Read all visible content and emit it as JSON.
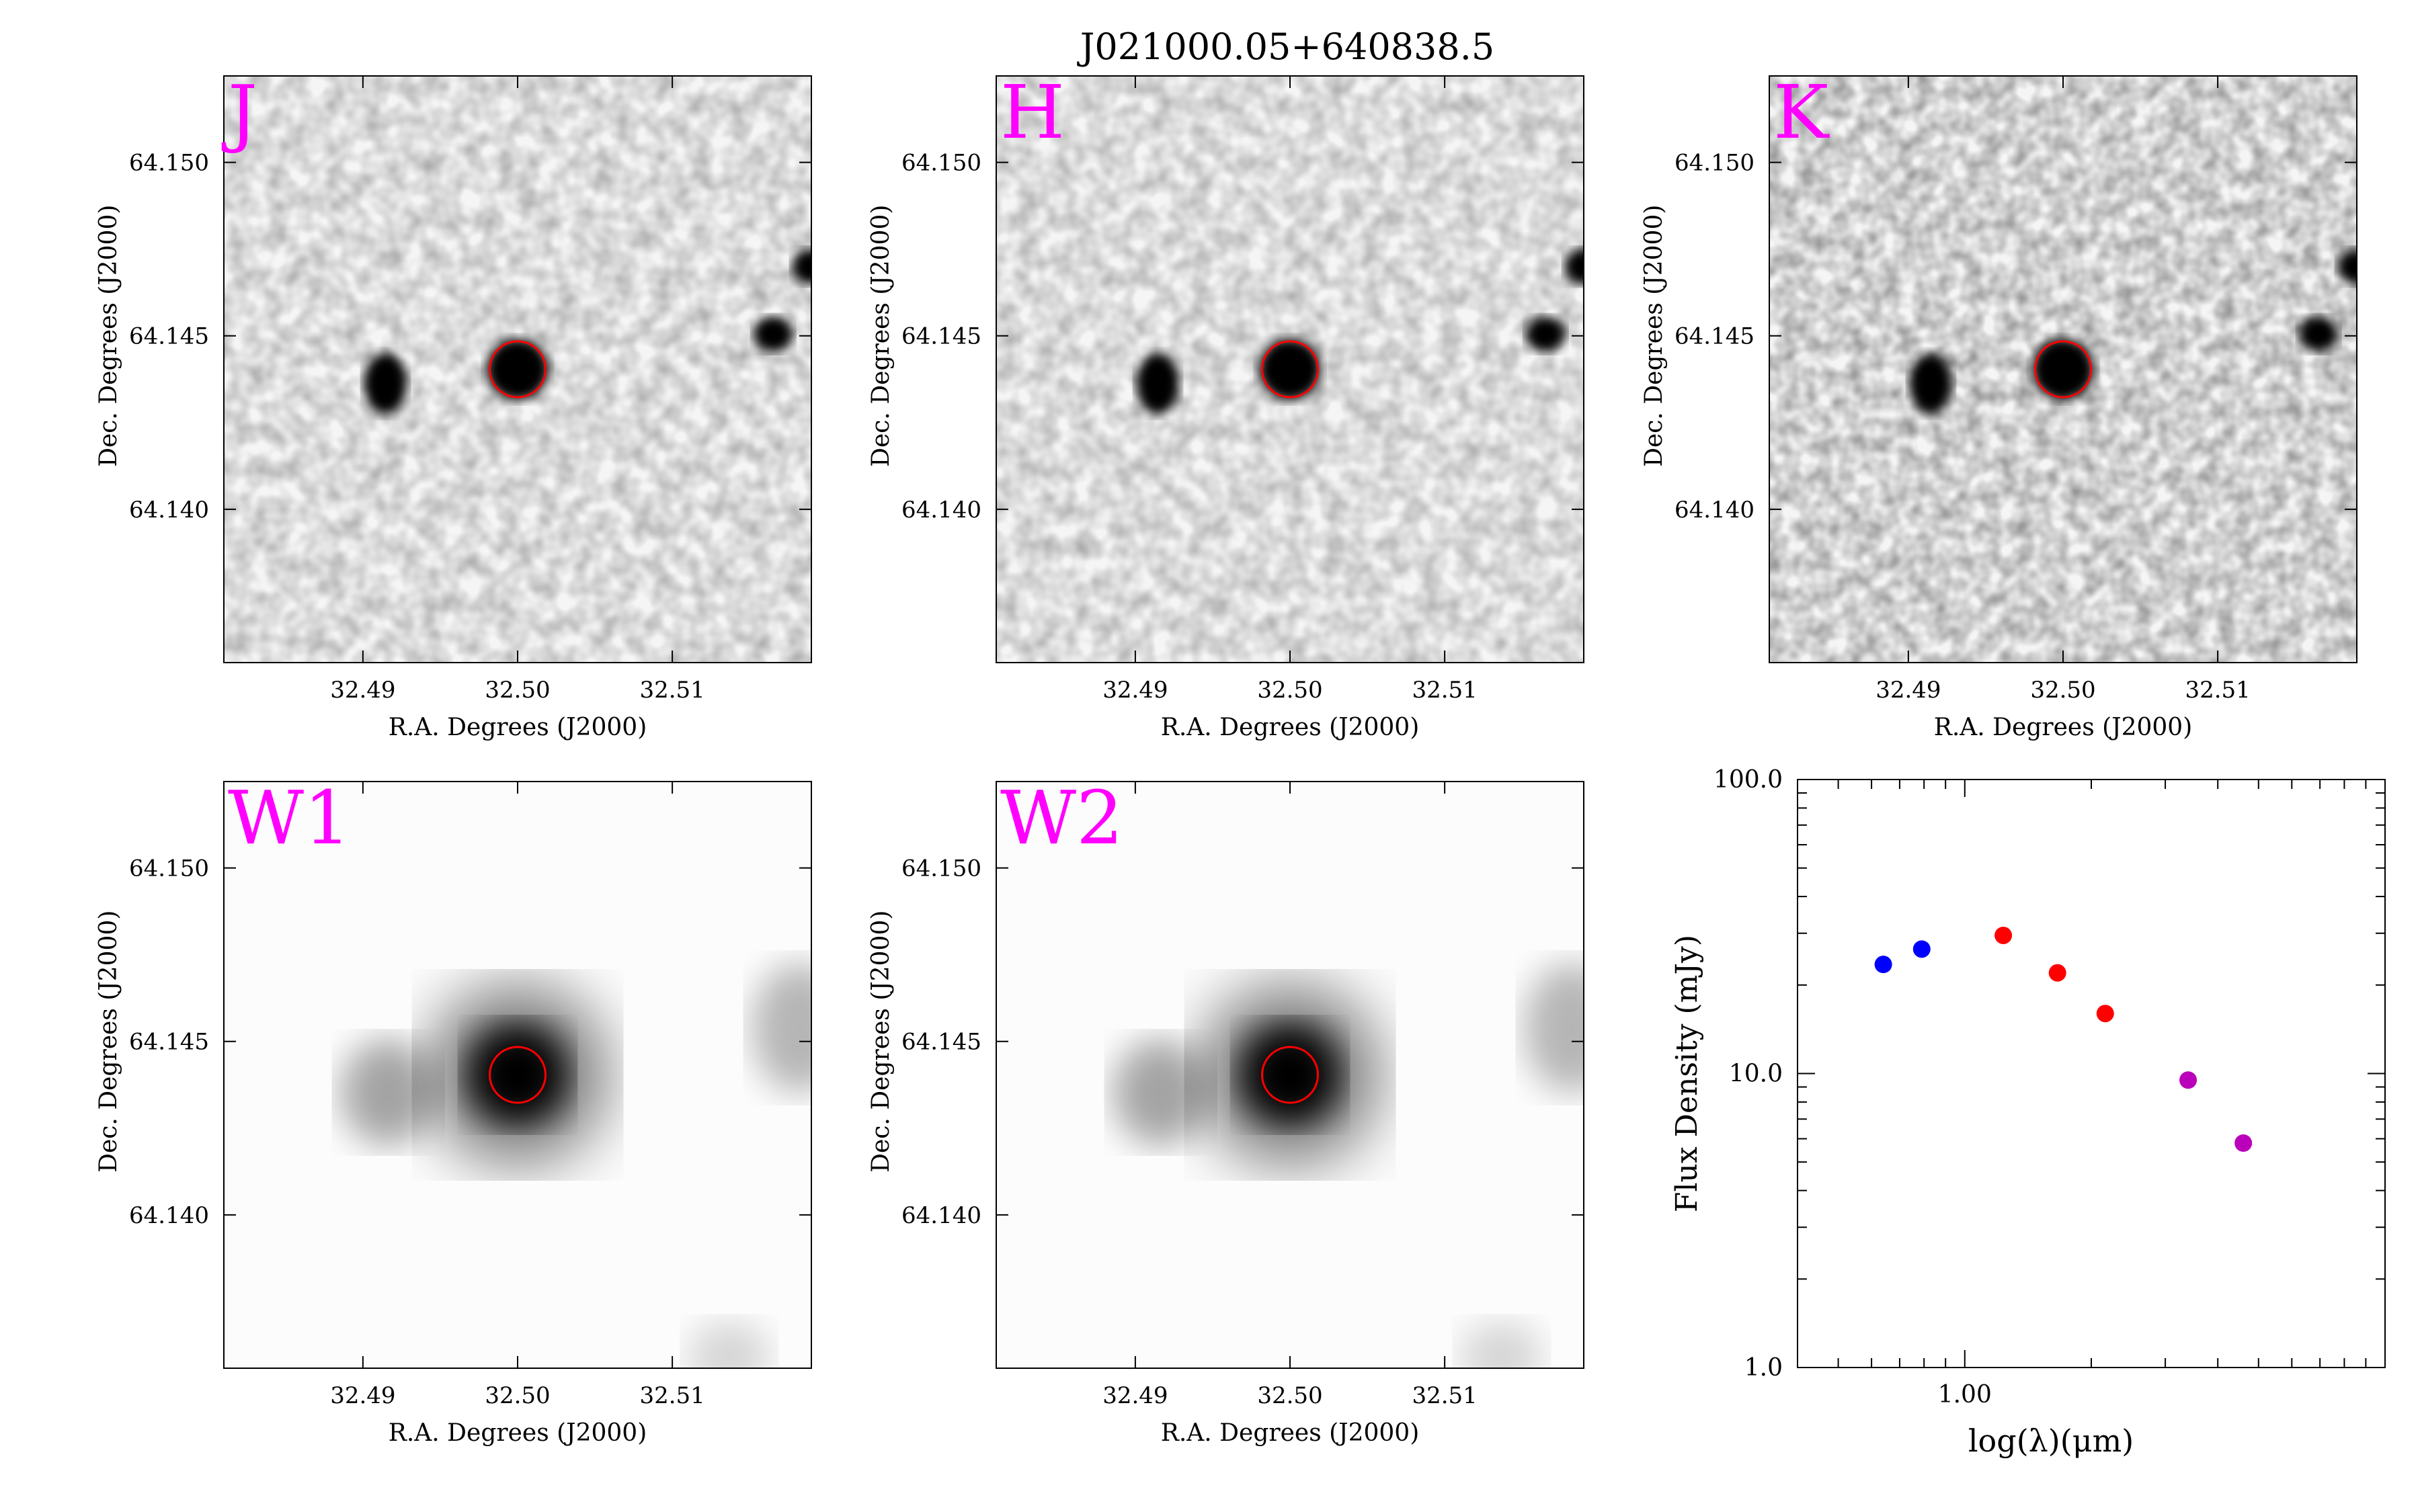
{
  "title": "J021000.05+640838.5",
  "colors": {
    "band_label": "#ff00ff",
    "aperture": "#ff0000",
    "blue": "#0000ff",
    "red": "#ff0000",
    "purple": "#bb00bb"
  },
  "image_panels": [
    {
      "band": "J",
      "xlabel": "R.A. Degrees (J2000)",
      "ylabel": "Dec. Degrees (J2000)",
      "xticks": [
        "32.49",
        "32.50",
        "32.51"
      ],
      "yticks": [
        "64.150",
        "64.145",
        "64.140"
      ],
      "xlim": [
        32.4793,
        32.5167
      ],
      "ylim": [
        64.1355,
        64.1524
      ]
    },
    {
      "band": "H",
      "xlabel": "R.A. Degrees (J2000)",
      "ylabel": "Dec. Degrees (J2000)",
      "xticks": [
        "32.49",
        "32.50",
        "32.51"
      ],
      "yticks": [
        "64.150",
        "64.145",
        "64.140"
      ],
      "xlim": [
        32.4793,
        32.5167
      ],
      "ylim": [
        64.1355,
        64.1524
      ]
    },
    {
      "band": "K",
      "xlabel": "R.A. Degrees (J2000)",
      "ylabel": "Dec. Degrees (J2000)",
      "xticks": [
        "32.49",
        "32.50",
        "32.51"
      ],
      "yticks": [
        "64.150",
        "64.145",
        "64.140"
      ],
      "xlim": [
        32.4793,
        32.5167
      ],
      "ylim": [
        64.1355,
        64.1524
      ]
    },
    {
      "band": "W1",
      "xlabel": "R.A. Degrees (J2000)",
      "ylabel": "Dec. Degrees (J2000)",
      "xticks": [
        "32.49",
        "32.50",
        "32.51"
      ],
      "yticks": [
        "64.150",
        "64.145",
        "64.140"
      ],
      "xlim": [
        32.4793,
        32.5167
      ],
      "ylim": [
        64.1355,
        64.1524
      ]
    },
    {
      "band": "W2",
      "xlabel": "R.A. Degrees (J2000)",
      "ylabel": "Dec. Degrees (J2000)",
      "xticks": [
        "32.49",
        "32.50",
        "32.51"
      ],
      "yticks": [
        "64.150",
        "64.145",
        "64.140"
      ],
      "xlim": [
        32.4793,
        32.5167
      ],
      "ylim": [
        64.1355,
        64.1524
      ]
    }
  ],
  "chart_data": {
    "type": "scatter",
    "xlabel": "log(λ)(μm)",
    "ylabel": "Flux Density (mJy)",
    "xscale": "log",
    "yscale": "log",
    "xlim": [
      0.4,
      10
    ],
    "ylim": [
      1,
      100
    ],
    "xticks": [
      "1.00"
    ],
    "yticks": [
      "100.0",
      "10.0",
      "1.0"
    ],
    "grid": false,
    "series": [
      {
        "color": "#0000ff",
        "x": [
          0.64,
          0.79
        ],
        "y": [
          23.5,
          26.5
        ]
      },
      {
        "color": "#ff0000",
        "x": [
          1.235,
          1.662,
          2.159
        ],
        "y": [
          29.5,
          22.0,
          16.0
        ]
      },
      {
        "color": "#bb00bb",
        "x": [
          3.4,
          4.6
        ],
        "y": [
          9.5,
          5.8
        ]
      }
    ]
  }
}
